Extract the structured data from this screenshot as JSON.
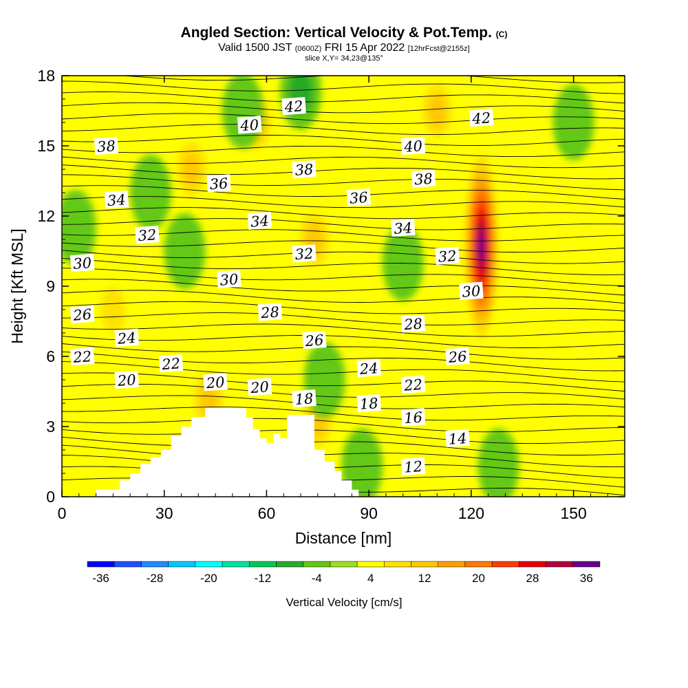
{
  "header": {
    "title": "Angled Section: Vertical Velocity & Pot.Temp.",
    "copyright": "(C)",
    "valid_main": "Valid 1500 JST",
    "valid_utc": "(0600Z)",
    "valid_date": "FRI 15 Apr 2022",
    "forecast": "[12hrFcst@2155z]",
    "slice": "slice X,Y= 34,23@135°"
  },
  "chart_data": {
    "type": "heatmap",
    "title": "Angled Section: Vertical Velocity & Pot.Temp.",
    "xlabel": "Distance [nm]",
    "ylabel": "Height [Kft MSL]",
    "xlim": [
      0,
      165
    ],
    "ylim": [
      0,
      18
    ],
    "x_ticks": [
      0,
      30,
      60,
      90,
      120,
      150
    ],
    "y_ticks": [
      0,
      3,
      6,
      9,
      12,
      15,
      18
    ],
    "colorbar": {
      "label": "Vertical Velocity [cm/s]",
      "ticks": [
        -36,
        -28,
        -20,
        -12,
        -4,
        4,
        12,
        20,
        28,
        36
      ],
      "bounds": [
        -38,
        -34,
        -30,
        -26,
        -22,
        -18,
        -14,
        -10,
        -6,
        -2,
        2,
        6,
        10,
        14,
        18,
        22,
        26,
        30,
        34,
        38
      ],
      "colors": [
        "#0000ff",
        "#1e50ff",
        "#1e8cff",
        "#00c8ff",
        "#00ffff",
        "#00e1a0",
        "#00c85a",
        "#28aa28",
        "#64c814",
        "#a0dc1e",
        "#ffff00",
        "#ffe100",
        "#ffc800",
        "#ffa000",
        "#ff7800",
        "#ff3c00",
        "#e60000",
        "#b4003c",
        "#64008c"
      ]
    },
    "vertical_velocity_features": [
      {
        "kind": "updraft",
        "x": 123,
        "y": 10.7,
        "peak": 36
      },
      {
        "kind": "updraft",
        "x": 110,
        "y": 16.5,
        "peak": 12
      },
      {
        "kind": "updraft",
        "x": 74,
        "y": 11,
        "peak": 12
      },
      {
        "kind": "updraft",
        "x": 38,
        "y": 14,
        "peak": 12
      },
      {
        "kind": "updraft",
        "x": 57,
        "y": 16,
        "peak": 12
      },
      {
        "kind": "updraft",
        "x": 15,
        "y": 8,
        "peak": 8
      },
      {
        "kind": "updraft",
        "x": 75,
        "y": 3.3,
        "peak": 14
      },
      {
        "kind": "updraft",
        "x": 43,
        "y": 4.2,
        "peak": 12
      },
      {
        "kind": "downdraft",
        "x": 100,
        "y": 10,
        "peak": -5
      },
      {
        "kind": "downdraft",
        "x": 128,
        "y": 1.3,
        "peak": -4
      },
      {
        "kind": "downdraft",
        "x": 77,
        "y": 5,
        "peak": -5
      },
      {
        "kind": "downdraft",
        "x": 70,
        "y": 17.3,
        "peak": -10
      },
      {
        "kind": "downdraft",
        "x": 53,
        "y": 16.5,
        "peak": -5
      },
      {
        "kind": "downdraft",
        "x": 36,
        "y": 10.5,
        "peak": -6
      },
      {
        "kind": "downdraft",
        "x": 4,
        "y": 11.5,
        "peak": -4
      },
      {
        "kind": "downdraft",
        "x": 150,
        "y": 16,
        "peak": -4
      },
      {
        "kind": "downdraft",
        "x": 26,
        "y": 13,
        "peak": -4
      },
      {
        "kind": "downdraft",
        "x": 88,
        "y": 1.3,
        "peak": -4
      }
    ],
    "terrain": [
      [
        10,
        0.3
      ],
      [
        17,
        0.7
      ],
      [
        20,
        1
      ],
      [
        23,
        1.4
      ],
      [
        26,
        1.7
      ],
      [
        29,
        2
      ],
      [
        32,
        2.6
      ],
      [
        35,
        3
      ],
      [
        38,
        3.4
      ],
      [
        42,
        3.8
      ],
      [
        46,
        3.8
      ],
      [
        51,
        3.8
      ],
      [
        54,
        3.4
      ],
      [
        56,
        2.9
      ],
      [
        58,
        2.5
      ],
      [
        60,
        2.3
      ],
      [
        62,
        2.7
      ],
      [
        64,
        2.5
      ],
      [
        66,
        3.5
      ],
      [
        70,
        3.5
      ],
      [
        74,
        2
      ],
      [
        77,
        1.5
      ],
      [
        80,
        1.1
      ],
      [
        82,
        0.7
      ],
      [
        85,
        0.3
      ],
      [
        87,
        0
      ]
    ],
    "theta_contour_labels": [
      {
        "text": "42",
        "x": 68,
        "y": 16.7
      },
      {
        "text": "42",
        "x": 123,
        "y": 16.2
      },
      {
        "text": "40",
        "x": 55,
        "y": 15.9
      },
      {
        "text": "40",
        "x": 103,
        "y": 15
      },
      {
        "text": "38",
        "x": 13,
        "y": 15
      },
      {
        "text": "38",
        "x": 71,
        "y": 14
      },
      {
        "text": "38",
        "x": 106,
        "y": 13.6
      },
      {
        "text": "36",
        "x": 46,
        "y": 13.4
      },
      {
        "text": "36",
        "x": 87,
        "y": 12.8
      },
      {
        "text": "34",
        "x": 16,
        "y": 12.7
      },
      {
        "text": "34",
        "x": 58,
        "y": 11.8
      },
      {
        "text": "34",
        "x": 100,
        "y": 11.5
      },
      {
        "text": "32",
        "x": 25,
        "y": 11.2
      },
      {
        "text": "32",
        "x": 71,
        "y": 10.4
      },
      {
        "text": "32",
        "x": 113,
        "y": 10.3
      },
      {
        "text": "30",
        "x": 6,
        "y": 10
      },
      {
        "text": "30",
        "x": 49,
        "y": 9.3
      },
      {
        "text": "30",
        "x": 120,
        "y": 8.8
      },
      {
        "text": "28",
        "x": 61,
        "y": 7.9
      },
      {
        "text": "28",
        "x": 103,
        "y": 7.4
      },
      {
        "text": "26",
        "x": 6,
        "y": 7.8
      },
      {
        "text": "26",
        "x": 74,
        "y": 6.7
      },
      {
        "text": "26",
        "x": 116,
        "y": 6
      },
      {
        "text": "24",
        "x": 19,
        "y": 6.8
      },
      {
        "text": "24",
        "x": 90,
        "y": 5.5
      },
      {
        "text": "22",
        "x": 6,
        "y": 6
      },
      {
        "text": "22",
        "x": 32,
        "y": 5.7
      },
      {
        "text": "22",
        "x": 103,
        "y": 4.8
      },
      {
        "text": "20",
        "x": 19,
        "y": 5
      },
      {
        "text": "20",
        "x": 45,
        "y": 4.9
      },
      {
        "text": "20",
        "x": 58,
        "y": 4.7
      },
      {
        "text": "18",
        "x": 71,
        "y": 4.2
      },
      {
        "text": "18",
        "x": 90,
        "y": 4
      },
      {
        "text": "16",
        "x": 103,
        "y": 3.4
      },
      {
        "text": "14",
        "x": 116,
        "y": 2.5
      },
      {
        "text": "12",
        "x": 103,
        "y": 1.3
      }
    ],
    "grid": false,
    "legend": "bottom colorbar"
  }
}
